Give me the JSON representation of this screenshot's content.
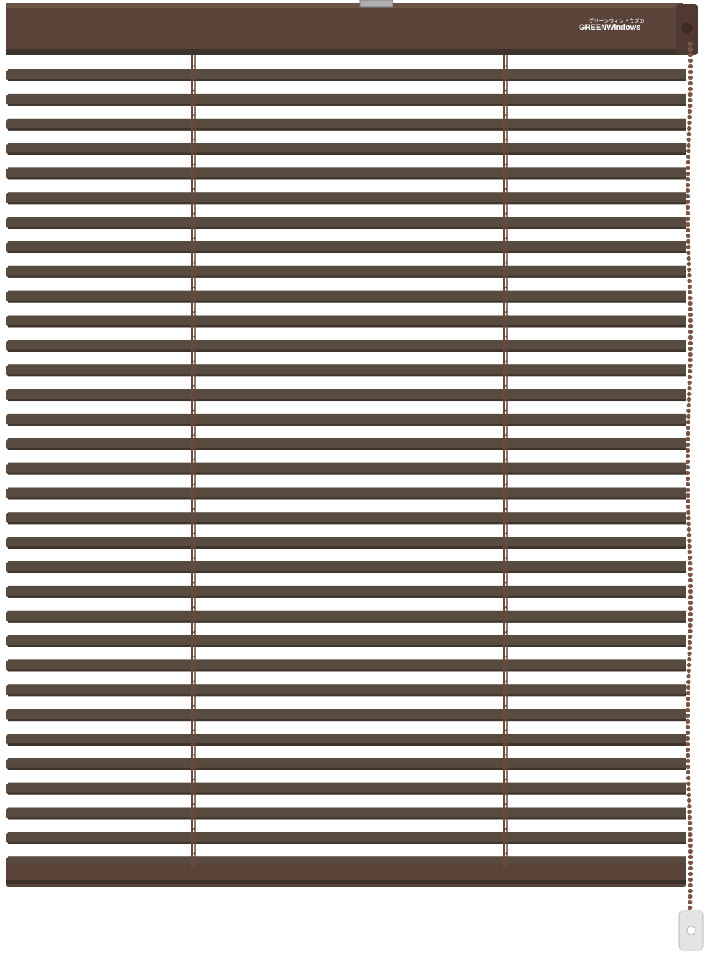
{
  "product": {
    "logo_kana": "グリーンウィンドウズの",
    "logo_brand": "GREENWindows",
    "colors": {
      "slat": "#584b40",
      "slat_shadow": "#3f342b",
      "headrail": "#5a4439",
      "ladder": "#6a4a3a",
      "chain": "#7a5646",
      "tassel": "#e4e4e4"
    },
    "slat_count": 33
  }
}
